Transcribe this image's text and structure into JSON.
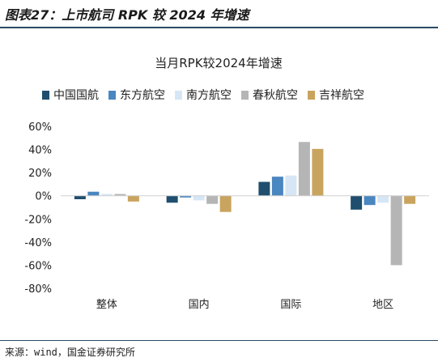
{
  "figure_title": "图表27：上市航司 RPK 较 2024 年增速",
  "source": "来源：wind，国金证券研究所",
  "colors": {
    "中国国航": "#1f4e6e",
    "东方航空": "#4a86c0",
    "南方航空": "#d6e6f5",
    "春秋航空": "#b5b5b5",
    "吉祥航空": "#c9a45e"
  },
  "chart_data": {
    "type": "bar",
    "title": "当月RPK较2024年增速",
    "categories": [
      "整体",
      "国内",
      "国际",
      "地区"
    ],
    "ylim": [
      -0.8,
      0.6
    ],
    "yticks": [
      "60%",
      "40%",
      "20%",
      "0%",
      "-20%",
      "-40%",
      "-60%",
      "-80%"
    ],
    "legend_position": "top",
    "grid": false,
    "series": [
      {
        "name": "中国国航",
        "values": [
          -0.03,
          -0.06,
          0.12,
          -0.12
        ]
      },
      {
        "name": "东方航空",
        "values": [
          0.035,
          -0.015,
          0.165,
          -0.08
        ]
      },
      {
        "name": "南方航空",
        "values": [
          0.015,
          -0.04,
          0.175,
          -0.06
        ]
      },
      {
        "name": "春秋航空",
        "values": [
          0.015,
          -0.07,
          0.465,
          -0.6
        ]
      },
      {
        "name": "吉祥航空",
        "values": [
          -0.05,
          -0.14,
          0.405,
          -0.07
        ]
      }
    ]
  }
}
